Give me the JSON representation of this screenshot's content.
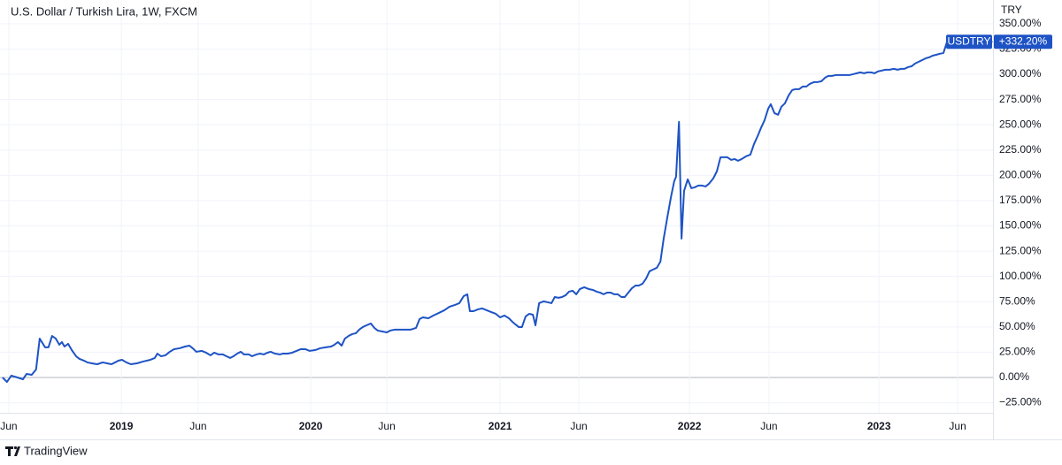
{
  "chart_data": {
    "type": "line",
    "title": "U.S. Dollar / Turkish Lira, 1W, FXCM",
    "currency": "TRY",
    "current_value": {
      "value": 332.2,
      "label": "+332.20%"
    },
    "xlim": [
      -0.7,
      271.9
    ],
    "ylim": [
      -35,
      373.5
    ],
    "xticks": [
      {
        "value": 1.7,
        "label": "Jun"
      },
      {
        "value": 32.6,
        "label": "2019"
      },
      {
        "value": 53.7,
        "label": "Jun"
      },
      {
        "value": 84.6,
        "label": "2020"
      },
      {
        "value": 105.5,
        "label": "Jun"
      },
      {
        "value": 136.6,
        "label": "2021"
      },
      {
        "value": 158.2,
        "label": "Jun"
      },
      {
        "value": 188.6,
        "label": "2022"
      },
      {
        "value": 210.4,
        "label": "Jun"
      },
      {
        "value": 240.6,
        "label": "2023"
      },
      {
        "value": 262.2,
        "label": "Jun"
      }
    ],
    "yticks": [
      {
        "value": -25,
        "label": "−25.00%"
      },
      {
        "value": 0,
        "label": "0.00%"
      },
      {
        "value": 25,
        "label": "25.00%"
      },
      {
        "value": 50,
        "label": "50.00%"
      },
      {
        "value": 75,
        "label": "75.00%"
      },
      {
        "value": 100,
        "label": "100.00%"
      },
      {
        "value": 125,
        "label": "125.00%"
      },
      {
        "value": 150,
        "label": "150.00%"
      },
      {
        "value": 175,
        "label": "175.00%"
      },
      {
        "value": 200,
        "label": "200.00%"
      },
      {
        "value": 225,
        "label": "225.00%"
      },
      {
        "value": 250,
        "label": "250.00%"
      },
      {
        "value": 275,
        "label": "275.00%"
      },
      {
        "value": 300,
        "label": "300.00%"
      },
      {
        "value": 325,
        "label": "325.00%"
      },
      {
        "value": 350,
        "label": "350.00%"
      }
    ],
    "grid": true,
    "x": [
      0,
      1.2,
      2.4,
      4.1,
      5.6,
      6.6,
      8.0,
      9.2,
      10.2,
      11.7,
      12.6,
      13.6,
      14.6,
      15.6,
      16.3,
      17.0,
      18.0,
      19.0,
      20.2,
      21.1,
      22.4,
      23.3,
      24.5,
      26.0,
      27.5,
      28.7,
      29.9,
      30.9,
      31.8,
      32.8,
      34.0,
      35.2,
      36.9,
      38.6,
      40.6,
      41.8,
      42.5,
      43.5,
      44.7,
      45.9,
      47.1,
      48.6,
      50.1,
      51.3,
      52.2,
      53.2,
      54.7,
      55.9,
      57.1,
      58.1,
      59.3,
      60.5,
      61.5,
      62.5,
      63.4,
      64.4,
      65.4,
      66.3,
      67.6,
      68.5,
      69.7,
      70.7,
      71.7,
      72.7,
      73.6,
      74.8,
      76.1,
      77.0,
      78.3,
      79.5,
      80.7,
      81.9,
      83.1,
      84.3,
      85.8,
      87.2,
      88.7,
      90.2,
      91.1,
      92.1,
      93.1,
      94.0,
      95.0,
      96.0,
      97.0,
      97.9,
      98.9,
      99.9,
      101.1,
      102.1,
      103.0,
      104.3,
      105.5,
      106.4,
      107.7,
      109.1,
      110.6,
      112.0,
      113.5,
      114.5,
      115.4,
      116.9,
      118.3,
      119.8,
      121.3,
      122.7,
      124.2,
      125.4,
      126.6,
      127.6,
      128.3,
      129.3,
      130.5,
      131.7,
      132.9,
      134.1,
      135.4,
      136.6,
      137.8,
      139.0,
      140.2,
      141.7,
      142.6,
      143.6,
      144.6,
      145.6,
      146.3,
      147.3,
      148.5,
      149.7,
      150.7,
      151.6,
      152.6,
      153.6,
      154.6,
      155.5,
      156.5,
      157.5,
      158.5,
      159.7,
      160.9,
      162.1,
      163.1,
      164.0,
      165.0,
      166.0,
      166.9,
      167.9,
      168.9,
      169.9,
      170.8,
      171.8,
      172.8,
      173.8,
      174.7,
      175.7,
      176.7,
      177.6,
      178.6,
      179.6,
      180.6,
      181.5,
      182.5,
      183.5,
      184.4,
      184.9,
      185.7,
      186.4,
      187.1,
      188.1,
      189.1,
      190.0,
      191.0,
      192.0,
      193.0,
      193.9,
      195.1,
      196.1,
      197.1,
      198.1,
      199.0,
      200.0,
      201.0,
      201.9,
      202.9,
      204.1,
      205.3,
      206.3,
      207.3,
      208.3,
      209.2,
      210.2,
      210.9,
      211.9,
      212.9,
      213.8,
      214.8,
      215.8,
      216.8,
      217.7,
      218.7,
      219.7,
      220.7,
      221.6,
      222.8,
      223.8,
      224.8,
      225.8,
      226.7,
      227.7,
      228.9,
      230.1,
      231.4,
      232.6,
      233.5,
      234.5,
      235.5,
      236.5,
      237.4,
      238.4,
      239.4,
      240.3,
      241.3,
      242.3,
      243.5,
      244.7,
      245.7,
      246.7,
      247.6,
      248.6,
      249.6,
      250.5,
      251.5,
      252.5,
      253.5,
      254.4,
      255.4,
      256.4,
      257.3,
      258.3,
      259.3
    ],
    "series": [
      {
        "name": "USDTRY",
        "color": "#1e53c5",
        "values": [
          0,
          -4.4,
          1.8,
          0,
          -1.8,
          3.5,
          2.6,
          7.9,
          38.5,
          29.8,
          29.8,
          41.1,
          38.5,
          32.4,
          35.0,
          30.6,
          33.3,
          27.1,
          21.0,
          18.4,
          16.6,
          14.9,
          14.0,
          13.1,
          14.9,
          14.0,
          13.1,
          14.9,
          16.6,
          17.5,
          14.9,
          13.1,
          14.0,
          15.8,
          17.5,
          19.3,
          23.6,
          21.0,
          21.9,
          25.4,
          28.0,
          28.9,
          30.6,
          31.5,
          28.9,
          25.4,
          26.3,
          24.5,
          21.9,
          24.5,
          22.8,
          22.8,
          21.0,
          19.3,
          21.0,
          23.6,
          25.4,
          22.8,
          22.8,
          21.0,
          22.8,
          23.6,
          22.8,
          24.5,
          25.4,
          23.6,
          22.8,
          23.6,
          23.6,
          24.5,
          26.3,
          28.0,
          28.0,
          26.3,
          27.1,
          28.9,
          29.8,
          30.6,
          32.4,
          35.0,
          31.5,
          38.5,
          41.1,
          42.9,
          43.8,
          47.3,
          49.9,
          51.6,
          53.4,
          49.0,
          46.4,
          45.5,
          44.6,
          46.4,
          47.3,
          47.3,
          47.3,
          47.3,
          49.0,
          57.8,
          59.5,
          58.6,
          61.3,
          63.9,
          66.5,
          70.0,
          71.8,
          73.5,
          80.5,
          82.3,
          65.6,
          65.6,
          67.4,
          68.3,
          66.5,
          64.8,
          63.0,
          59.5,
          61.3,
          58.6,
          54.3,
          49.9,
          49.9,
          60.4,
          63.0,
          62.1,
          51.6,
          73.5,
          75.3,
          74.4,
          73.5,
          79.6,
          78.8,
          79.6,
          81.4,
          84.9,
          85.8,
          82.3,
          87.5,
          89.3,
          87.5,
          86.6,
          84.9,
          84.0,
          82.3,
          84.0,
          84.0,
          82.3,
          82.3,
          79.6,
          79.6,
          84.0,
          88.4,
          91.0,
          91.0,
          92.8,
          98.0,
          105.0,
          106.8,
          108.5,
          114.6,
          137.4,
          158.4,
          178.5,
          194.3,
          198.6,
          252.9,
          137.4,
          184.6,
          196.0,
          187.3,
          188.1,
          189.9,
          189.9,
          189.0,
          191.6,
          196.9,
          203.9,
          217.9,
          217.9,
          217.9,
          215.3,
          216.1,
          214.4,
          216.1,
          218.8,
          220.5,
          231.0,
          238.9,
          247.6,
          254.6,
          266.0,
          270.4,
          261.6,
          259.9,
          267.8,
          271.3,
          279.1,
          284.4,
          285.3,
          285.3,
          287.9,
          287.9,
          290.5,
          292.3,
          292.3,
          293.1,
          296.6,
          298.4,
          298.4,
          299.3,
          299.3,
          299.3,
          299.3,
          300.1,
          301.0,
          301.9,
          301.0,
          301.9,
          301.9,
          301.0,
          302.8,
          303.6,
          304.5,
          304.5,
          305.4,
          304.5,
          305.4,
          305.4,
          307.1,
          308.0,
          310.6,
          312.4,
          314.1,
          315.9,
          316.8,
          318.5,
          319.4,
          320.3,
          321.1,
          332.2
        ]
      }
    ]
  },
  "footer": {
    "brand": "TradingView"
  }
}
